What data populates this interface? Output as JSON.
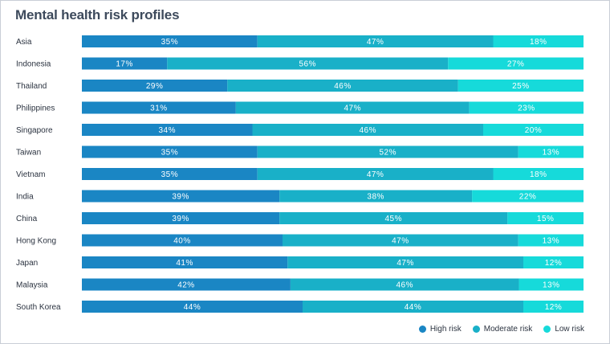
{
  "chart_data": {
    "type": "bar",
    "orientation": "horizontal",
    "stacked": true,
    "title": "Mental health risk profiles",
    "categories": [
      "Asia",
      "Indonesia",
      "Thailand",
      "Philippines",
      "Singapore",
      "Taiwan",
      "Vietnam",
      "India",
      "China",
      "Hong Kong",
      "Japan",
      "Malaysia",
      "South Korea"
    ],
    "series": [
      {
        "name": "High risk",
        "color": "#1a86c4",
        "values": [
          35,
          17,
          29,
          31,
          34,
          35,
          35,
          39,
          39,
          40,
          41,
          42,
          44
        ]
      },
      {
        "name": "Moderate risk",
        "color": "#19b0c8",
        "values": [
          47,
          56,
          46,
          47,
          46,
          52,
          47,
          38,
          45,
          47,
          47,
          46,
          44
        ]
      },
      {
        "name": "Low risk",
        "color": "#16dada",
        "values": [
          18,
          27,
          25,
          23,
          20,
          13,
          18,
          22,
          15,
          13,
          12,
          13,
          12
        ]
      }
    ],
    "value_suffix": "%",
    "legend_position": "bottom-right"
  }
}
